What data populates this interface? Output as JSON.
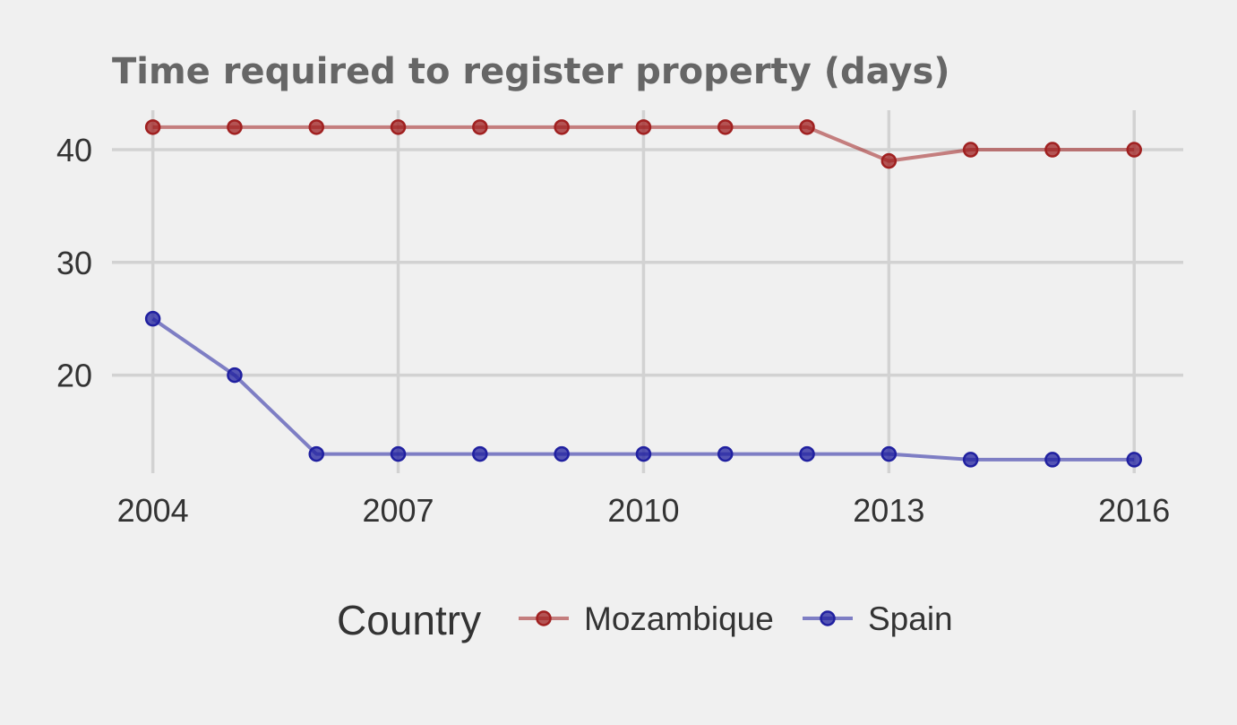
{
  "chart_data": {
    "type": "line",
    "title": "Time required to register property (days)",
    "xlabel": "",
    "ylabel": "",
    "x": [
      2004,
      2005,
      2006,
      2007,
      2008,
      2009,
      2010,
      2011,
      2012,
      2013,
      2014,
      2015,
      2016
    ],
    "x_ticks": [
      2004,
      2007,
      2010,
      2013,
      2016
    ],
    "x_tick_labels": [
      "2004",
      "2007",
      "2010",
      "2013",
      "2016"
    ],
    "y_ticks": [
      20,
      30,
      40
    ],
    "y_tick_labels": [
      "20",
      "30",
      "40"
    ],
    "xlim": [
      2003.5,
      2016.6
    ],
    "ylim": [
      11.3,
      43.5
    ],
    "grid": true,
    "legend": {
      "title": "Country",
      "placement": "bottom"
    },
    "series": [
      {
        "name": "Mozambique",
        "color": "#a02020",
        "values": [
          42,
          42,
          42,
          42,
          42,
          42,
          42,
          42,
          42,
          39,
          40,
          40,
          40
        ]
      },
      {
        "name": "Spain",
        "color": "#2020a0",
        "values": [
          25,
          20,
          13,
          13,
          13,
          13,
          13,
          13,
          13,
          13,
          12.5,
          12.5,
          12.5
        ]
      }
    ]
  }
}
